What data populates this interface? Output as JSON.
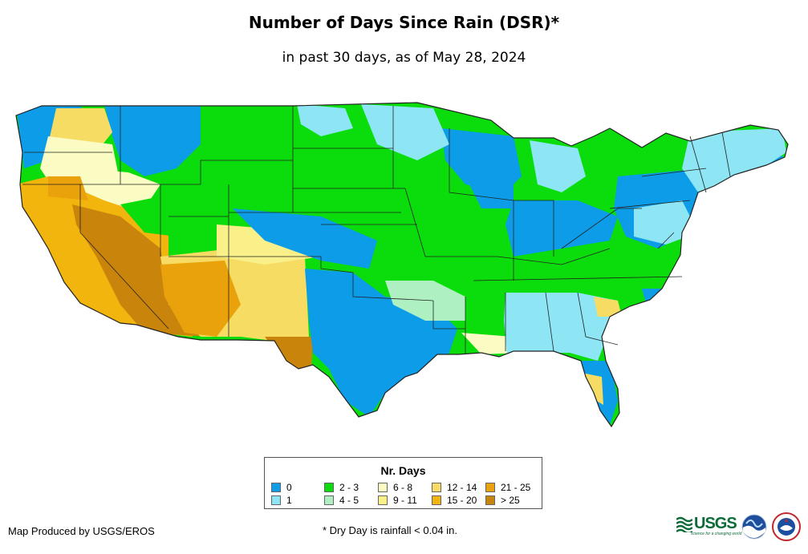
{
  "title": "Number of Days Since Rain (DSR)*",
  "subtitle": "in past 30 days, as of May 28, 2024",
  "legend": {
    "title": "Nr. Days",
    "items": [
      {
        "label": "0",
        "color": "#0c9ce8"
      },
      {
        "label": "1",
        "color": "#8ee5f4"
      },
      {
        "label": "2 - 3",
        "color": "#0bdc0b"
      },
      {
        "label": "4 - 5",
        "color": "#aef0c2"
      },
      {
        "label": "6 - 8",
        "color": "#fbfbc4"
      },
      {
        "label": "9 - 11",
        "color": "#faf08a"
      },
      {
        "label": "12 - 14",
        "color": "#f7dc63"
      },
      {
        "label": "15 - 20",
        "color": "#f2b50e"
      },
      {
        "label": "21 - 25",
        "color": "#e9a20c"
      },
      {
        "label": "> 25",
        "color": "#c9840c"
      }
    ]
  },
  "credit": "Map Produced by USGS/EROS",
  "footnote": "* Dry Day is rainfall < 0.04 in.",
  "logos": {
    "usgs": "USGS",
    "usgs_tagline": "science for a changing world"
  }
}
